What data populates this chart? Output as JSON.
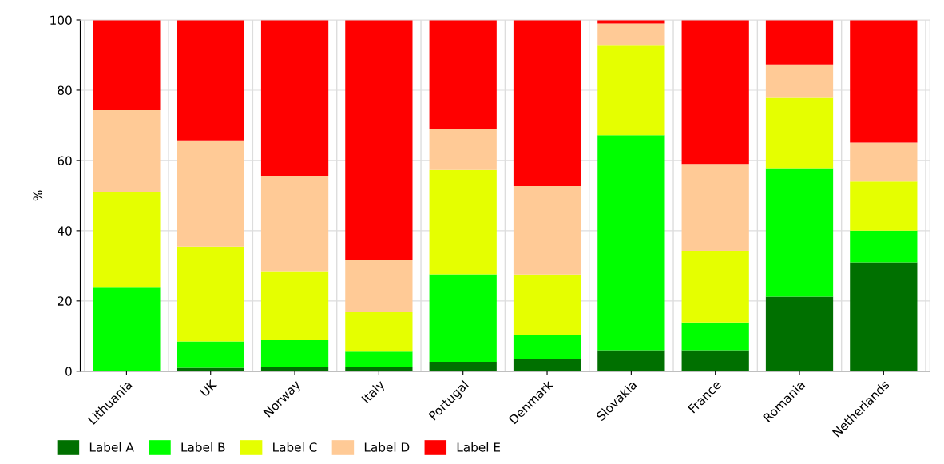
{
  "chart_data": {
    "type": "bar",
    "stacked": true,
    "ylabel": "%",
    "categories": [
      "Lithuania",
      "UK",
      "Norway",
      "Italy",
      "Portugal",
      "Denmark",
      "Slovakia",
      "France",
      "Romania",
      "Netherlands"
    ],
    "series": [
      {
        "name": "Label A",
        "color": "#007000",
        "values": [
          0,
          1,
          1.2,
          1.2,
          2.7,
          3.4,
          6,
          6,
          21.2,
          31
        ]
      },
      {
        "name": "Label B",
        "color": "#00ff00",
        "values": [
          24,
          7.5,
          7.6,
          4.4,
          24.9,
          6.9,
          61.2,
          7.9,
          36.6,
          9
        ]
      },
      {
        "name": "Label C",
        "color": "#e5ff00",
        "values": [
          27,
          27,
          19.7,
          11.2,
          29.7,
          17.2,
          25.7,
          20.4,
          20,
          14
        ]
      },
      {
        "name": "Label D",
        "color": "#ffca96",
        "values": [
          23.3,
          30.2,
          27.1,
          14.9,
          11.7,
          25.2,
          6.1,
          24.7,
          9.5,
          11.1
        ]
      },
      {
        "name": "Label E",
        "color": "#ff0000",
        "values": [
          25.7,
          34.3,
          44.4,
          68.3,
          31,
          47.3,
          1,
          41,
          12.7,
          34.9
        ]
      }
    ],
    "ylim": [
      0,
      100
    ],
    "yticks": [
      0,
      20,
      40,
      60,
      80,
      100
    ],
    "grid": true,
    "legend": "bottom left"
  }
}
